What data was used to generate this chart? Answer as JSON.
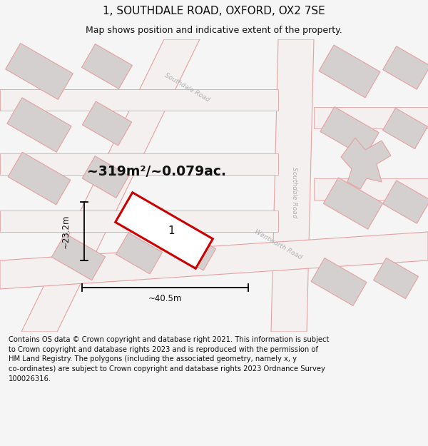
{
  "title": "1, SOUTHDALE ROAD, OXFORD, OX2 7SE",
  "subtitle": "Map shows position and indicative extent of the property.",
  "footer": "Contains OS data © Crown copyright and database right 2021. This information is subject to Crown copyright and database rights 2023 and is reproduced with the permission of\nHM Land Registry. The polygons (including the associated geometry, namely x, y\nco-ordinates) are subject to Crown copyright and database rights 2023 Ordnance Survey\n100026316.",
  "area_text": "~319m²/~0.079ac.",
  "dim_width": "~40.5m",
  "dim_height": "~23.2m",
  "plot_label": "1",
  "bg_color": "#f5f5f5",
  "map_bg": "#f0eded",
  "building_fill": "#d4d0d0",
  "road_stroke": "#e8a0a0",
  "highlight_stroke": "#cc0000",
  "road_text_color": "#b0b0b0",
  "title_fontsize": 11,
  "subtitle_fontsize": 9,
  "footer_fontsize": 7.2
}
